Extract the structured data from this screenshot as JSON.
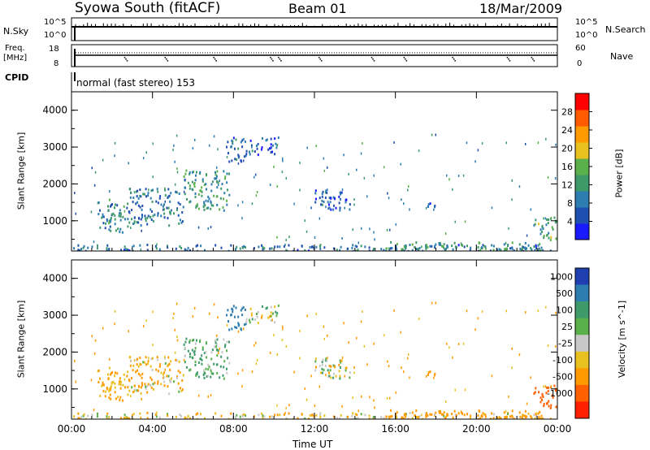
{
  "header": {
    "station": "Syowa South (fitACF)",
    "beam": "Beam 01",
    "date": "18/Mar/2009"
  },
  "summary_panels": {
    "nsky_label": "N.Sky",
    "nsky_ticks": [
      "10^5",
      "10^0"
    ],
    "nsearch_label": "N.Search",
    "nsearch_ticks": [
      "10^5",
      "10^0"
    ],
    "freq_label": "Freq.",
    "freq_unit": "[MHz]",
    "freq_ticks": [
      "18",
      "8"
    ],
    "nave_label": "Nave",
    "nave_ticks": [
      "60",
      "0"
    ],
    "cpid_label": "CPID",
    "cpid_value": "normal (fast stereo) 153"
  },
  "colors": {
    "power_scale": [
      "#1a1aff",
      "#1f4fb0",
      "#2e7db0",
      "#3f9a6a",
      "#5ab04a",
      "#e8c020",
      "#ff9a00",
      "#ff5a00",
      "#ff0000"
    ],
    "velocity_scale": [
      "#1f3fb0",
      "#2e7db0",
      "#3f9a6a",
      "#5ab04a",
      "#c8c8c8",
      "#e8c020",
      "#ff9a00",
      "#ff6000",
      "#ff2000"
    ]
  },
  "chart_data": [
    {
      "type": "heatmap",
      "panel": "power",
      "ylabel": "Slant Range [km]",
      "ylim": [
        180,
        4500
      ],
      "yticks": [
        "4000",
        "3000",
        "2000",
        "1000"
      ],
      "colorbar_label": "Power [dB]",
      "colorbar_ticks": [
        "28",
        "24",
        "20",
        "16",
        "12",
        "8",
        "4"
      ],
      "colorbar_range": [
        0,
        32
      ],
      "echo_regions": [
        {
          "t0": 1.2,
          "t1": 2.8,
          "r0": 700,
          "r1": 1600,
          "level": 10
        },
        {
          "t0": 2.8,
          "t1": 5.5,
          "r0": 900,
          "r1": 1900,
          "level": 9
        },
        {
          "t0": 5.5,
          "t1": 7.8,
          "r0": 1300,
          "r1": 2400,
          "level": 12
        },
        {
          "t0": 7.6,
          "t1": 8.6,
          "r0": 2600,
          "r1": 3300,
          "level": 7
        },
        {
          "t0": 8.6,
          "t1": 10.2,
          "r0": 2800,
          "r1": 3300,
          "level": 6
        },
        {
          "t0": 12.0,
          "t1": 13.8,
          "r0": 1300,
          "r1": 1900,
          "level": 6
        },
        {
          "t0": 17.5,
          "t1": 18.0,
          "r0": 1200,
          "r1": 1500,
          "level": 6
        },
        {
          "t0": 22.8,
          "t1": 23.9,
          "r0": 500,
          "r1": 1200,
          "level": 14
        },
        {
          "t0": 0.0,
          "t1": 24.0,
          "r0": 200,
          "r1": 380,
          "level": 8
        },
        {
          "t0": 15.5,
          "t1": 23.5,
          "r0": 220,
          "r1": 450,
          "level": 12
        }
      ]
    },
    {
      "type": "heatmap",
      "panel": "velocity",
      "ylabel": "Slant Range [km]",
      "ylim": [
        180,
        4500
      ],
      "yticks": [
        "4000",
        "3000",
        "2000",
        "1000"
      ],
      "xlabel": "Time UT",
      "xticks": [
        "00:00",
        "04:00",
        "08:00",
        "12:00",
        "16:00",
        "20:00",
        "00:00"
      ],
      "xlim": [
        0,
        24
      ],
      "colorbar_label": "Velocity [m s^-1]",
      "colorbar_ticks": [
        "1000",
        "500",
        "100",
        "25",
        "-25",
        "-100",
        "-500",
        "-1000"
      ],
      "echo_regions": [
        {
          "t0": 1.2,
          "t1": 2.8,
          "r0": 700,
          "r1": 1600,
          "level": -150
        },
        {
          "t0": 2.8,
          "t1": 5.5,
          "r0": 900,
          "r1": 1900,
          "level": -80
        },
        {
          "t0": 5.5,
          "t1": 7.8,
          "r0": 1300,
          "r1": 2400,
          "level": 120
        },
        {
          "t0": 7.6,
          "t1": 8.6,
          "r0": 2600,
          "r1": 3300,
          "level": 600
        },
        {
          "t0": 8.6,
          "t1": 10.2,
          "r0": 2800,
          "r1": 3300,
          "level": 10
        },
        {
          "t0": 12.0,
          "t1": 13.8,
          "r0": 1300,
          "r1": 1900,
          "level": 0
        },
        {
          "t0": 17.5,
          "t1": 18.0,
          "r0": 1200,
          "r1": 1500,
          "level": -400
        },
        {
          "t0": 22.8,
          "t1": 23.9,
          "r0": 500,
          "r1": 1200,
          "level": -700
        },
        {
          "t0": 0.0,
          "t1": 24.0,
          "r0": 200,
          "r1": 380,
          "level": -60
        },
        {
          "t0": 15.5,
          "t1": 23.5,
          "r0": 220,
          "r1": 450,
          "level": -300
        }
      ]
    }
  ]
}
